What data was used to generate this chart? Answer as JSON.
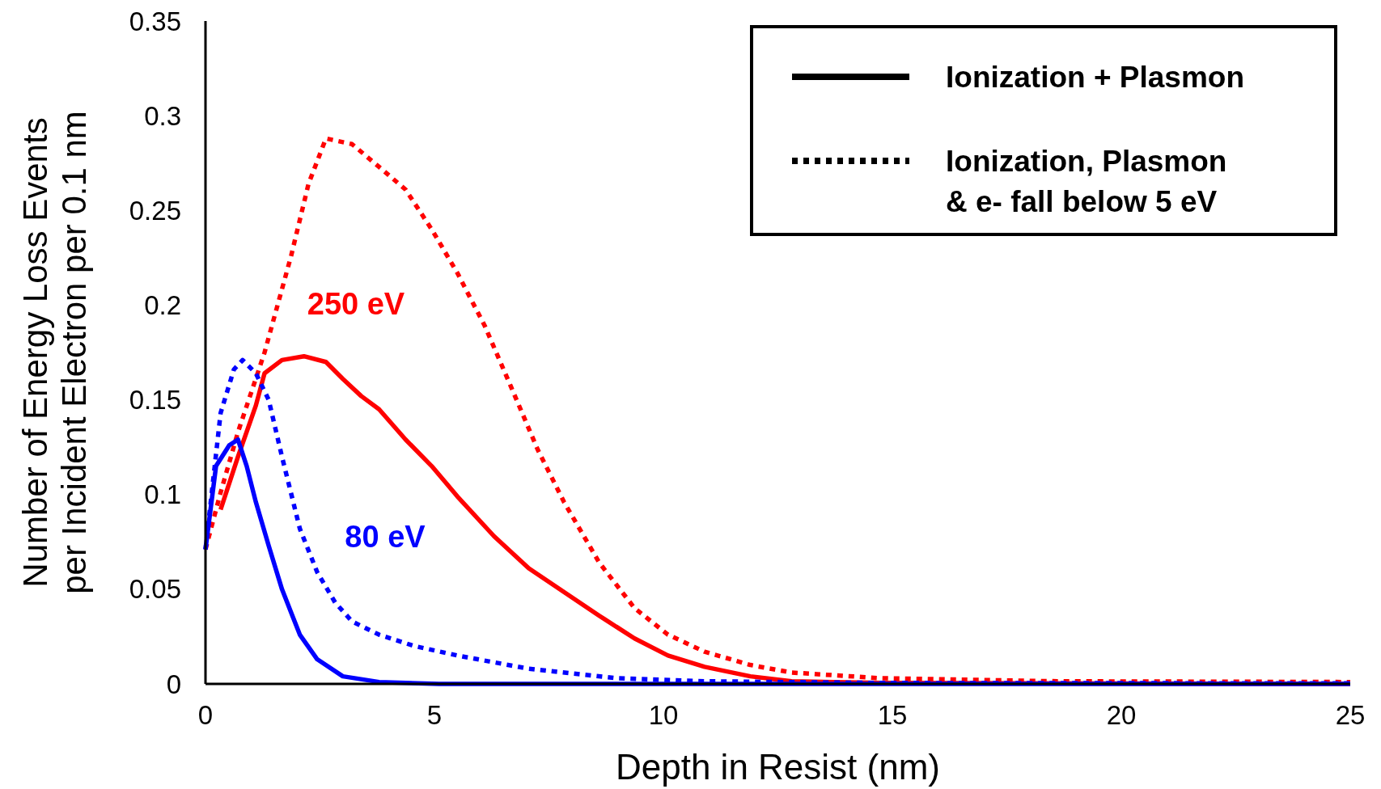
{
  "chart_data": {
    "type": "line",
    "xlabel": "Depth in Resist (nm)",
    "ylabel": "Number of Energy Loss Events per Incident Electron per 0.1 nm",
    "xlim": [
      0,
      25
    ],
    "xticks": [
      0,
      5,
      10,
      15,
      20,
      25
    ],
    "ylim": [
      0,
      0.35
    ],
    "yticks": [
      0,
      0.05,
      0.1,
      0.15,
      0.2,
      0.25,
      0.3,
      0.35
    ],
    "grid": false,
    "marker": "none",
    "annotations": [
      "250 eV",
      "80 eV",
      "Ionization + Plasmon",
      "Ionization, Plasmon & e- fall below 5 eV"
    ],
    "series": [
      {
        "color": "#ff0000",
        "line_style": "solid",
        "x": [
          0.33,
          0.71,
          1.1,
          1.29,
          1.67,
          2.15,
          2.63,
          3.0,
          3.4,
          3.79,
          4.37,
          4.94,
          5.5,
          6.3,
          7.06,
          7.8,
          8.6,
          9.37,
          10.1,
          10.9,
          11.9,
          12.8,
          14.75,
          25
        ],
        "values": [
          0.092,
          0.12,
          0.147,
          0.164,
          0.171,
          0.173,
          0.17,
          0.161,
          0.152,
          0.145,
          0.129,
          0.115,
          0.099,
          0.078,
          0.061,
          0.049,
          0.036,
          0.024,
          0.015,
          0.009,
          0.004,
          0.0014,
          0.0005,
          0
        ]
      },
      {
        "color": "#ff0000",
        "line_style": "dotted",
        "x": [
          0,
          0.33,
          0.71,
          1.29,
          1.87,
          2.25,
          2.63,
          3.2,
          3.79,
          4.37,
          4.94,
          5.5,
          6.1,
          6.67,
          7.25,
          7.83,
          8.6,
          9.37,
          10.1,
          10.9,
          11.9,
          12.8,
          14.75,
          18.6,
          25
        ],
        "values": [
          0.071,
          0.101,
          0.133,
          0.175,
          0.226,
          0.264,
          0.288,
          0.285,
          0.273,
          0.261,
          0.24,
          0.217,
          0.189,
          0.157,
          0.124,
          0.096,
          0.064,
          0.04,
          0.026,
          0.017,
          0.01,
          0.006,
          0.003,
          0.0014,
          0.001
        ]
      },
      {
        "color": "#0000ff",
        "line_style": "solid",
        "x": [
          0,
          0.23,
          0.52,
          0.71,
          0.9,
          1.1,
          1.38,
          1.67,
          2.06,
          2.44,
          3.0,
          3.79,
          5.1,
          25
        ],
        "values": [
          0.071,
          0.115,
          0.126,
          0.129,
          0.115,
          0.096,
          0.073,
          0.05,
          0.026,
          0.013,
          0.004,
          0.001,
          0,
          0
        ]
      },
      {
        "color": "#0000ff",
        "line_style": "dotted",
        "x": [
          0,
          0.33,
          0.62,
          0.81,
          1.1,
          1.38,
          1.67,
          2.06,
          2.44,
          2.83,
          3.2,
          3.79,
          4.56,
          5.5,
          7.06,
          8.98,
          10.9,
          14.75,
          25
        ],
        "values": [
          0.071,
          0.143,
          0.166,
          0.171,
          0.164,
          0.15,
          0.12,
          0.082,
          0.059,
          0.043,
          0.033,
          0.026,
          0.02,
          0.015,
          0.008,
          0.003,
          0.0014,
          0.0005,
          0.0003
        ]
      }
    ]
  }
}
